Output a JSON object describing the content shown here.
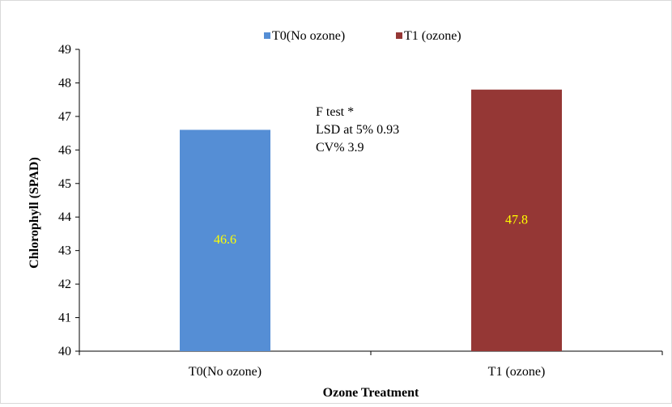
{
  "chart_data": {
    "type": "bar",
    "categories": [
      "T0(No ozone)",
      "T1 (ozone)"
    ],
    "series": [
      {
        "name": "T0(No ozone)",
        "values": [
          46.6,
          null
        ],
        "color": "#558ED5",
        "label": "46.6"
      },
      {
        "name": "T1 (ozone)",
        "values": [
          null,
          47.8
        ],
        "color": "#953735",
        "label": "47.8"
      }
    ],
    "xlabel": "Ozone Treatment",
    "ylabel": "Chlorophyll (SPAD)",
    "ylim": [
      40,
      49
    ],
    "yticks": [
      40,
      41,
      42,
      43,
      44,
      45,
      46,
      47,
      48,
      49
    ],
    "grid": false,
    "legend": "top-center",
    "data_label_color": "#FFFF00",
    "annotation": [
      "F test *",
      "LSD at 5% 0.93",
      "CV% 3.9"
    ]
  }
}
